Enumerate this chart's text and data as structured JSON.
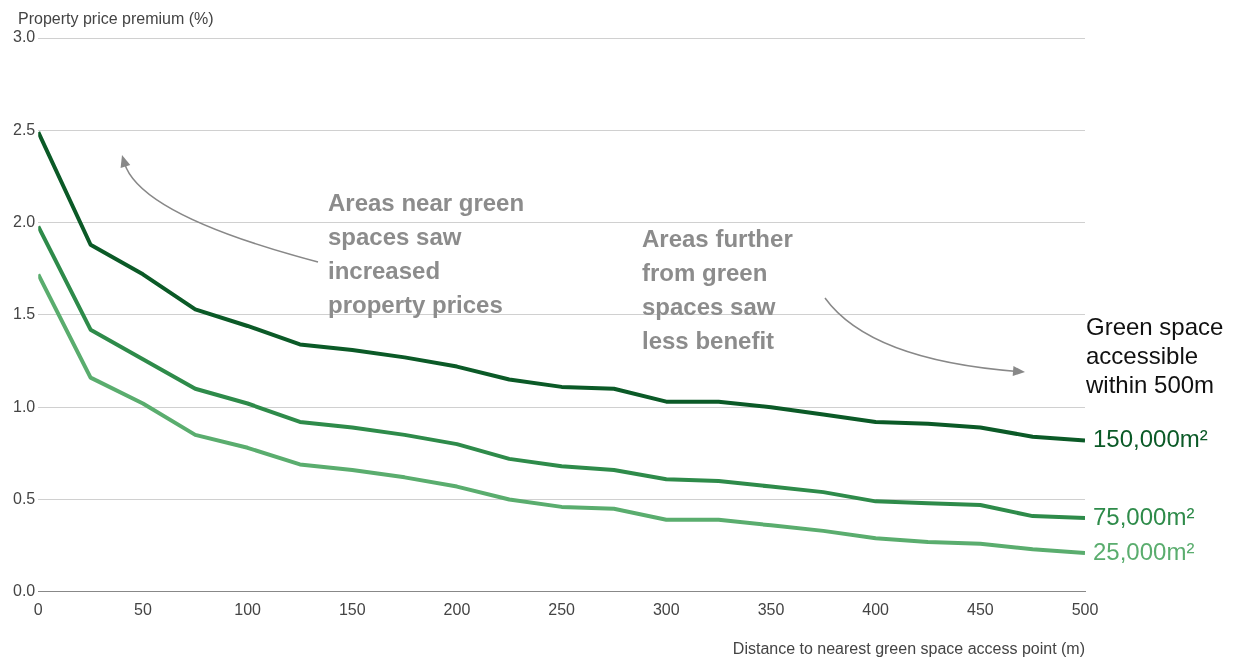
{
  "chart_data": {
    "type": "line",
    "xlabel": "Distance to nearest green space access point (m)",
    "ylabel": "Property price premium (%)",
    "legend_title": "Green space accessible within 500m",
    "x": [
      0,
      25,
      50,
      75,
      100,
      125,
      150,
      175,
      200,
      225,
      250,
      275,
      300,
      325,
      350,
      375,
      400,
      425,
      450,
      475,
      500
    ],
    "series": [
      {
        "name": "150,000m²",
        "color": "#0b5a27",
        "values": [
          2.49,
          1.88,
          1.72,
          1.53,
          1.44,
          1.34,
          1.31,
          1.27,
          1.22,
          1.15,
          1.11,
          1.1,
          1.03,
          1.03,
          1.0,
          0.96,
          0.92,
          0.91,
          0.89,
          0.84,
          0.82
        ]
      },
      {
        "name": "75,000m²",
        "color": "#2e8b4a",
        "values": [
          1.98,
          1.42,
          1.26,
          1.1,
          1.02,
          0.92,
          0.89,
          0.85,
          0.8,
          0.72,
          0.68,
          0.66,
          0.61,
          0.6,
          0.57,
          0.54,
          0.49,
          0.48,
          0.47,
          0.41,
          0.4
        ]
      },
      {
        "name": "25,000m²",
        "color": "#5aad6e",
        "values": [
          1.72,
          1.16,
          1.02,
          0.85,
          0.78,
          0.69,
          0.66,
          0.62,
          0.57,
          0.5,
          0.46,
          0.45,
          0.39,
          0.39,
          0.36,
          0.33,
          0.29,
          0.27,
          0.26,
          0.23,
          0.21
        ]
      }
    ],
    "xlim": [
      0,
      500
    ],
    "xticks": [
      0,
      50,
      100,
      150,
      200,
      250,
      300,
      350,
      400,
      450,
      500
    ],
    "ylim": [
      0,
      3
    ],
    "yticks": [
      {
        "value": 0,
        "label": "0.0"
      },
      {
        "value": 0.5,
        "label": "0.5"
      },
      {
        "value": 1,
        "label": "1.0"
      },
      {
        "value": 1.5,
        "label": "1.5"
      },
      {
        "value": 2,
        "label": "2.0"
      },
      {
        "value": 2.5,
        "label": "2.5"
      },
      {
        "value": 3,
        "label": "3.0"
      }
    ],
    "grid": "y",
    "marker": "none",
    "line_style": "solid",
    "legend": false,
    "annotations": [
      "Areas near green spaces saw increased property prices",
      "Areas further from green spaces saw less benefit"
    ]
  }
}
